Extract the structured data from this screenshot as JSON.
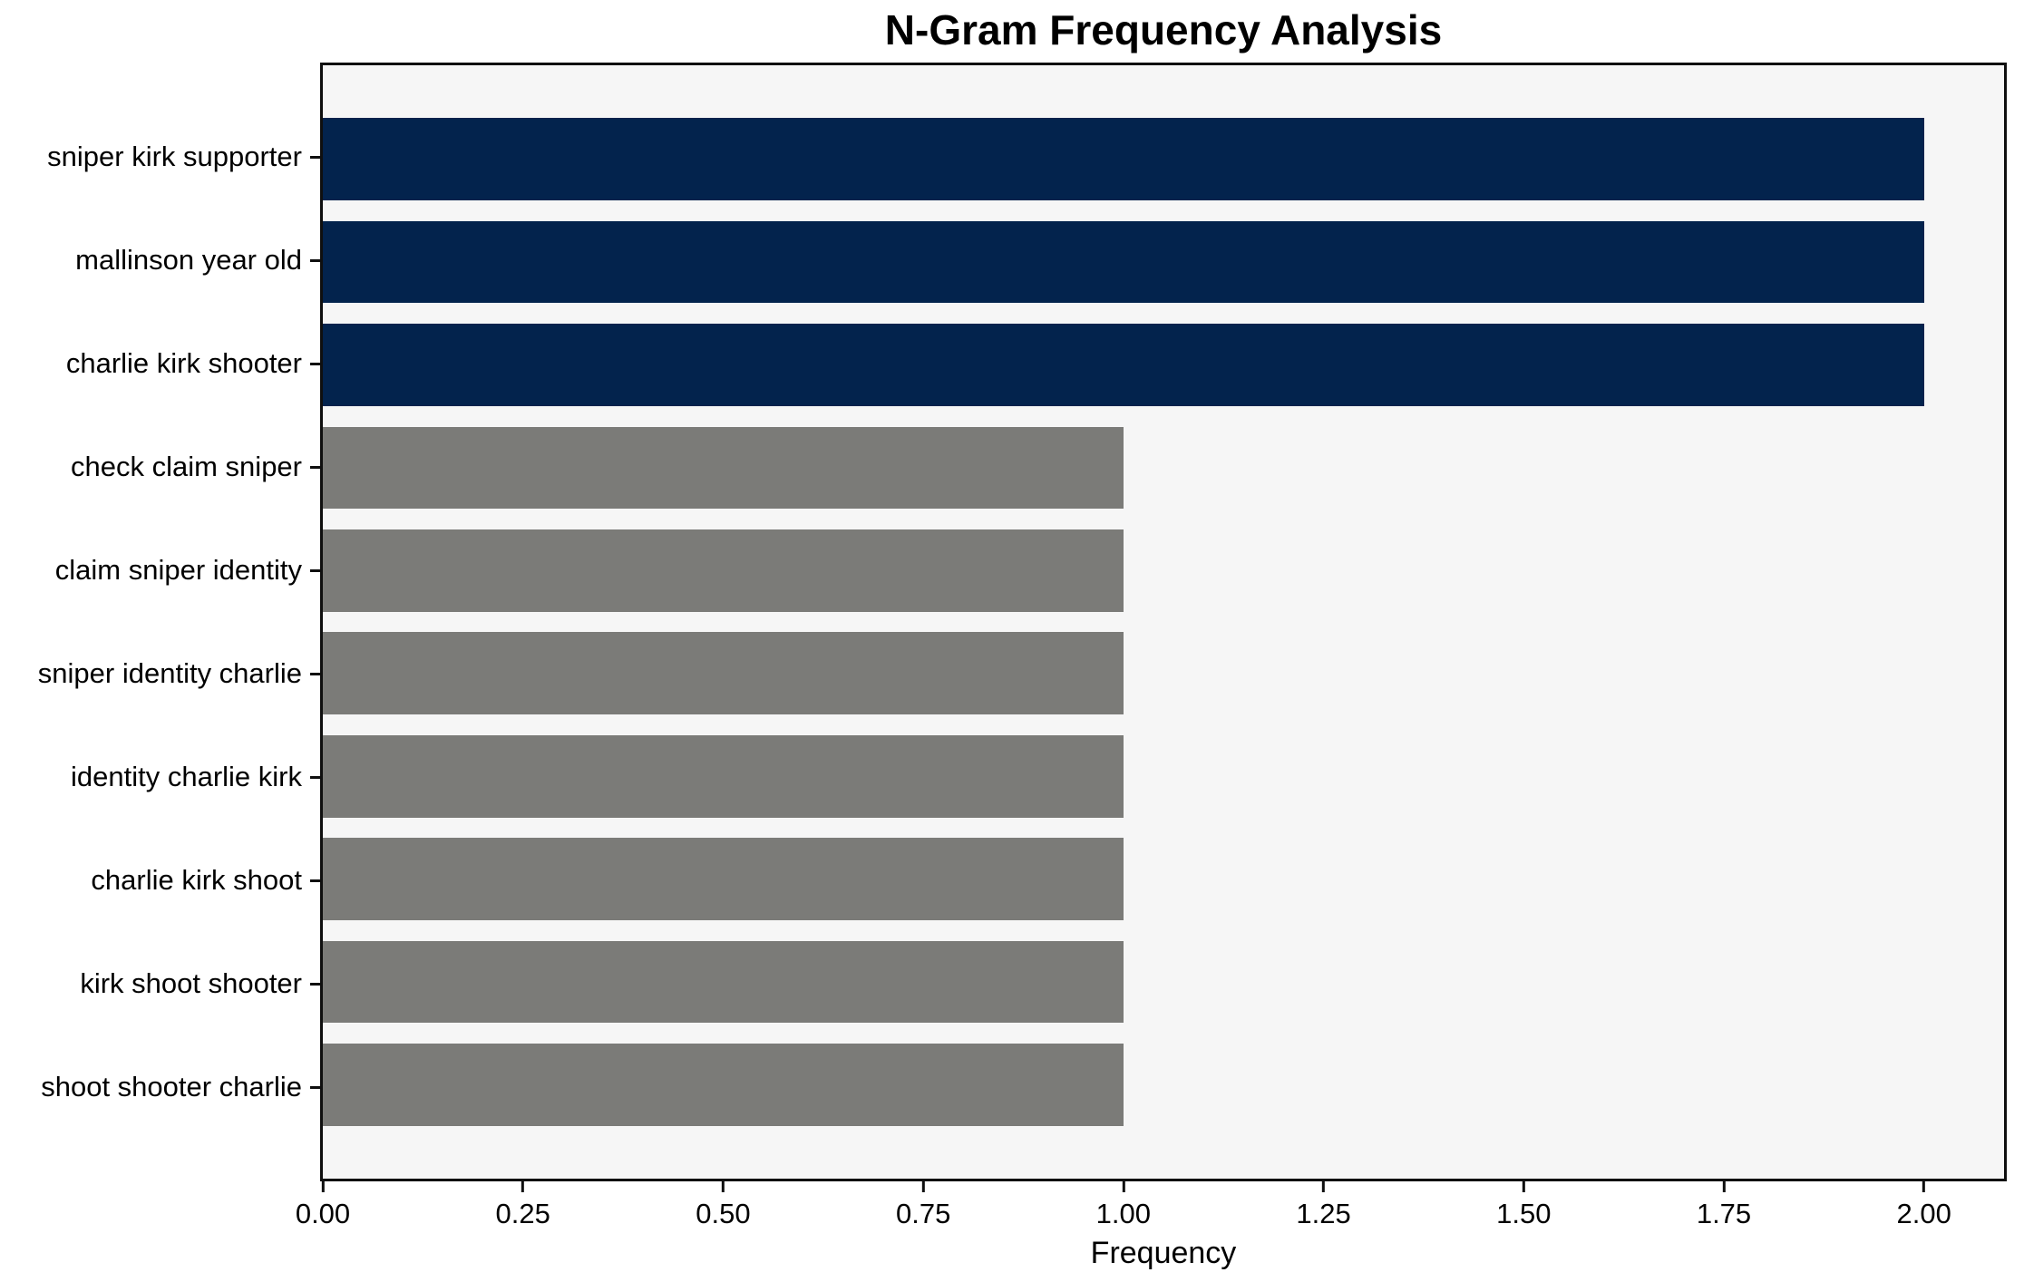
{
  "chart_data": {
    "type": "bar",
    "orientation": "horizontal",
    "title": "N-Gram Frequency Analysis",
    "xlabel": "Frequency",
    "ylabel": "",
    "categories": [
      "sniper kirk supporter",
      "mallinson year old",
      "charlie kirk shooter",
      "check claim sniper",
      "claim sniper identity",
      "sniper identity charlie",
      "identity charlie kirk",
      "charlie kirk shoot",
      "kirk shoot shooter",
      "shoot shooter charlie"
    ],
    "values": [
      2,
      2,
      2,
      1,
      1,
      1,
      1,
      1,
      1,
      1
    ],
    "bar_colors": [
      "#03234d",
      "#03234d",
      "#03234d",
      "#7b7b78",
      "#7b7b78",
      "#7b7b78",
      "#7b7b78",
      "#7b7b78",
      "#7b7b78",
      "#7b7b78"
    ],
    "xlim": [
      0,
      2.1
    ],
    "x_tick_values": [
      0.0,
      0.25,
      0.5,
      0.75,
      1.0,
      1.25,
      1.5,
      1.75,
      2.0
    ],
    "x_tick_labels": [
      "0.00",
      "0.25",
      "0.50",
      "0.75",
      "1.00",
      "1.25",
      "1.50",
      "1.75",
      "2.00"
    ],
    "grid": false,
    "legend": false
  },
  "colors": {
    "bar_navy": "#03234d",
    "bar_gray": "#7b7b78",
    "plot_background": "#f6f6f6",
    "figure_background": "#ffffff",
    "spine": "#0f0f0f",
    "text": "#000000"
  }
}
